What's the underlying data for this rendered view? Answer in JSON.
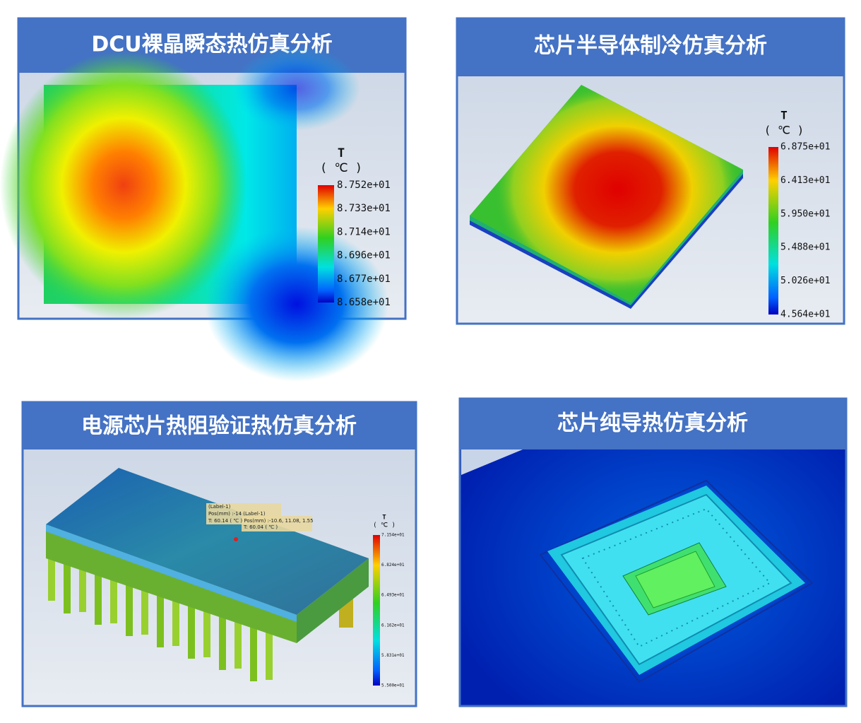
{
  "panels": [
    {
      "title": "DCU裸晶瞬态热仿真分析",
      "legend": {
        "symbol": "T",
        "unit": "( ℃ )",
        "labels": [
          "8.752e+01",
          "8.733e+01",
          "8.714e+01",
          "8.696e+01",
          "8.677e+01",
          "8.658e+01"
        ]
      }
    },
    {
      "title": "芯片半导体制冷仿真分析",
      "legend": {
        "symbol": "T",
        "unit": "( ℃ )",
        "labels": [
          "6.875e+01",
          "6.413e+01",
          "5.950e+01",
          "5.488e+01",
          "5.026e+01",
          "4.564e+01"
        ]
      }
    },
    {
      "title": "电源芯片热阻验证热仿真分析",
      "legend": {
        "symbol": "T",
        "unit": "( ℃ )",
        "labels": [
          "7.154e+01",
          "6.824e+01",
          "6.493e+01",
          "6.162e+01",
          "5.831e+01",
          "5.500e+01"
        ]
      },
      "annotations": [
        "(Label-1)",
        "Pos(mm) :-14  (Label-1)",
        "T: 60.14 ( ℃ ) Pos(mm) :-10.6, 11.08, 1.55",
        "T: 60.04 ( ℃ )"
      ]
    },
    {
      "title": "芯片纯导热仿真分析"
    }
  ]
}
